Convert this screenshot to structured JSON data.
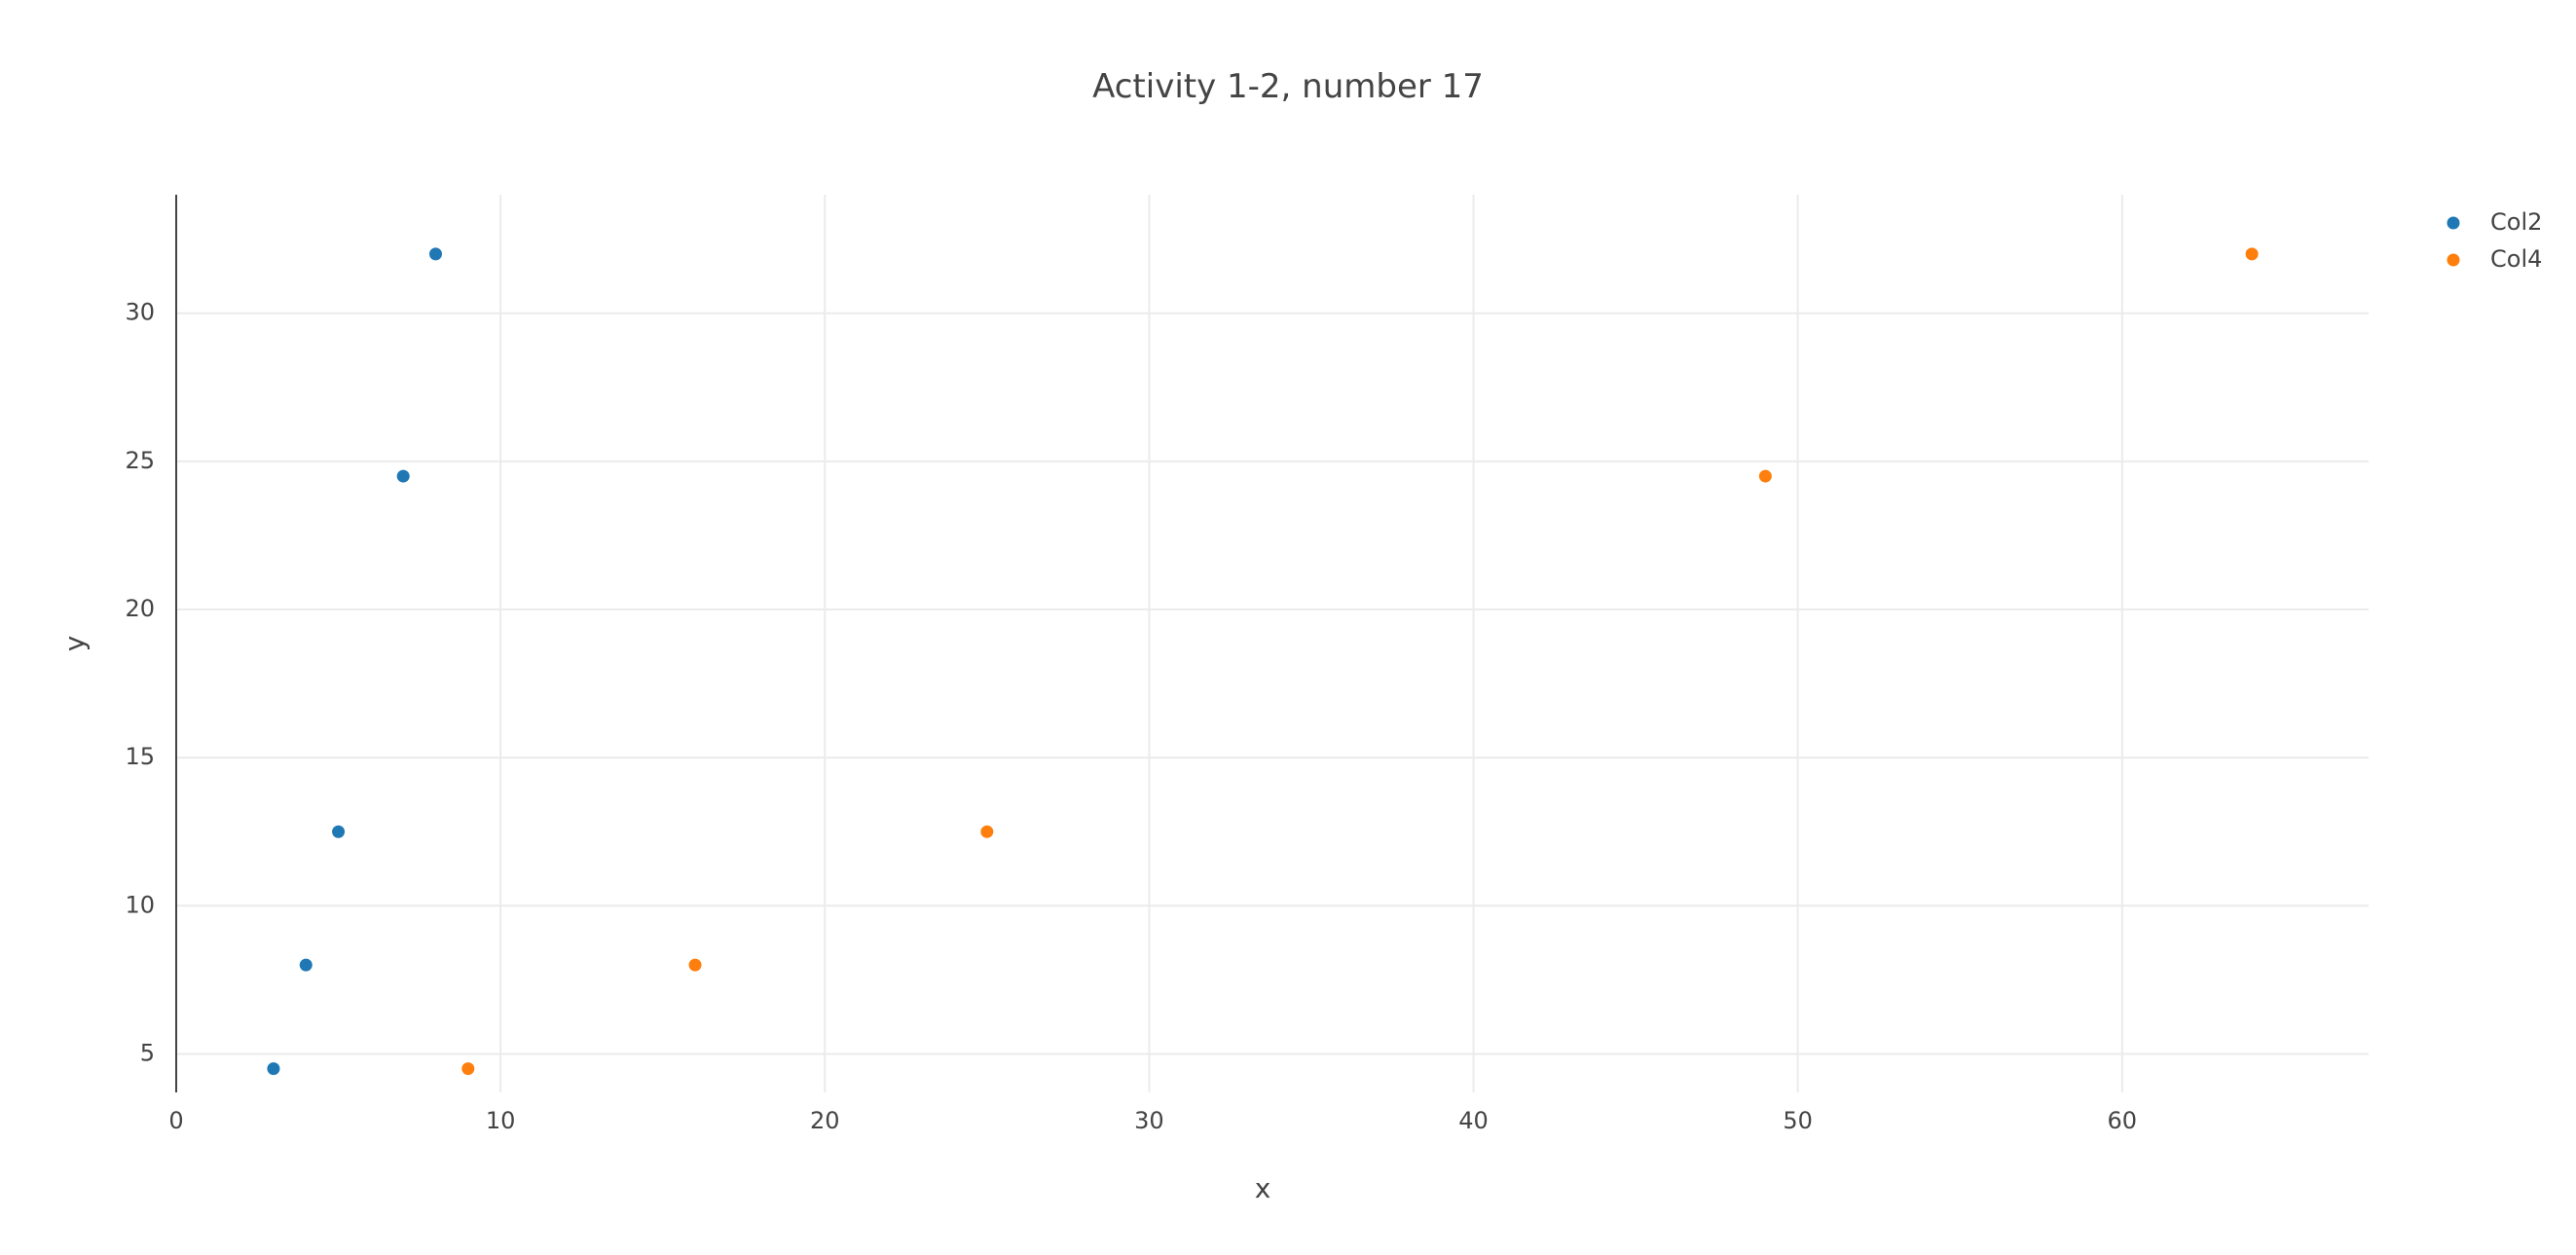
{
  "chart_data": {
    "type": "scatter",
    "title": "Activity 1-2, number 17",
    "xlabel": "x",
    "ylabel": "y",
    "xlim": [
      0,
      67.6
    ],
    "ylim": [
      3.7,
      34
    ],
    "xticks": [
      0,
      10,
      20,
      30,
      40,
      50,
      60
    ],
    "yticks": [
      5,
      10,
      15,
      20,
      25,
      30
    ],
    "grid": true,
    "legend_position": "top-right",
    "series": [
      {
        "name": "Col2",
        "color": "#1f77b4",
        "points": [
          [
            3,
            4.5
          ],
          [
            4,
            8
          ],
          [
            5,
            12.5
          ],
          [
            7,
            24.5
          ],
          [
            8,
            32
          ]
        ]
      },
      {
        "name": "Col4",
        "color": "#ff7f0e",
        "points": [
          [
            9,
            4.5
          ],
          [
            16,
            8
          ],
          [
            25,
            12.5
          ],
          [
            49,
            24.5
          ],
          [
            64,
            32
          ]
        ]
      }
    ]
  }
}
